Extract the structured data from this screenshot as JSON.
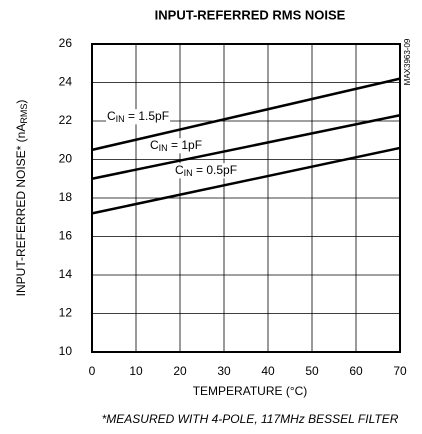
{
  "chart_data": {
    "type": "line",
    "title": "INPUT-REFERRED RMS NOISE",
    "y_label_parts": [
      "INPUT-REFERRED NOISE* (nA",
      "RMS",
      ")"
    ],
    "x_label": "TEMPERATURE (°C)",
    "footnote": "*MEASURED WITH 4-POLE, 117MHz BESSEL FILTER",
    "watermark": "MAX3963-09",
    "x": [
      0,
      70
    ],
    "series": [
      {
        "label_parts": [
          "C",
          "IN",
          " = 1.5pF"
        ],
        "color": "#000000",
        "values": [
          20.5,
          24.2
        ]
      },
      {
        "label_parts": [
          "C",
          "IN",
          " = 1pF"
        ],
        "color": "#000000",
        "values": [
          19.0,
          22.3
        ]
      },
      {
        "label_parts": [
          "C",
          "IN",
          " = 0.5pF"
        ],
        "color": "#000000",
        "values": [
          17.2,
          20.6
        ]
      }
    ],
    "xlim": [
      0,
      70
    ],
    "xticks": [
      0,
      10,
      20,
      30,
      40,
      50,
      60,
      70
    ],
    "ylim": [
      10,
      26
    ],
    "yticks": [
      10,
      12,
      14,
      16,
      18,
      20,
      22,
      24,
      26
    ],
    "grid": true
  }
}
